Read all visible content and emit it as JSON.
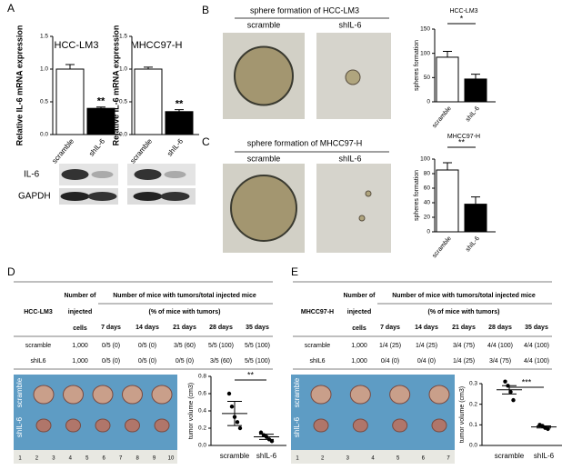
{
  "panel_labels": [
    "A",
    "B",
    "C",
    "D",
    "E"
  ],
  "chart_data": [
    {
      "type": "bar",
      "title": "HCC-LM3",
      "y_label": "Relative IL-6 mRNA  expression",
      "categories": [
        "scramble",
        "shIL-6"
      ],
      "values": [
        1.0,
        0.4
      ],
      "errors": [
        0.07,
        0.02
      ],
      "colors": [
        "#ffffff",
        "#000000"
      ],
      "ylim": [
        0,
        1.5
      ],
      "yticks": [
        {
          "value": 0,
          "label": "0.0"
        },
        0.5,
        {
          "value": 1,
          "label": "1.0"
        },
        1.5
      ],
      "annotation": "**"
    },
    {
      "type": "bar",
      "title": "MHCC97-H",
      "y_label": "Relative IL-6 mRNA  expression",
      "categories": [
        "scramble",
        "shIL-6"
      ],
      "values": [
        1.0,
        0.35
      ],
      "errors": [
        0.03,
        0.03
      ],
      "colors": [
        "#ffffff",
        "#000000"
      ],
      "ylim": [
        0,
        1.5
      ],
      "yticks": [
        {
          "value": 0,
          "label": "0.0"
        },
        0.5,
        {
          "value": 1,
          "label": "1.0"
        },
        1.5
      ],
      "annotation": "**"
    },
    {
      "type": "bar",
      "title": "HCC-LM3",
      "y_label": "spheres formation",
      "categories": [
        "scramble",
        "shIL-6"
      ],
      "values": [
        92,
        47
      ],
      "errors": [
        12,
        10
      ],
      "colors": [
        "#ffffff",
        "#000000"
      ],
      "ylim": [
        0,
        150
      ],
      "yticks": [
        0,
        50,
        100,
        150
      ],
      "annotation": "*"
    },
    {
      "type": "bar",
      "title": "MHCC97-H",
      "y_label": "spheres formation",
      "categories": [
        "scramble",
        "shIL-6"
      ],
      "values": [
        85,
        38
      ],
      "errors": [
        10,
        10
      ],
      "colors": [
        "#ffffff",
        "#000000"
      ],
      "ylim": [
        0,
        100
      ],
      "yticks": [
        0,
        20,
        40,
        60,
        80,
        100
      ],
      "annotation": "**"
    },
    {
      "type": "dot",
      "y_label": "tumor volume (cm3)",
      "categories": [
        "scramble",
        "shIL-6"
      ],
      "points": [
        [
          0.6,
          0.45,
          0.33,
          0.27,
          0.2
        ],
        [
          0.15,
          0.12,
          0.1,
          0.07,
          0.05
        ]
      ],
      "means": [
        0.37,
        0.1
      ],
      "errors": [
        0.14,
        0.03
      ],
      "color": "#000000",
      "ylim": [
        0,
        0.8
      ],
      "yticks": [
        {
          "value": 0,
          "label": "0.0"
        },
        0.2,
        0.4,
        0.6,
        0.8
      ],
      "annotation": "**"
    },
    {
      "type": "dot",
      "y_label": "tumor volume (cm3)",
      "categories": [
        "scramble",
        "shIL-6"
      ],
      "points": [
        [
          0.31,
          0.29,
          0.26,
          0.22
        ],
        [
          0.1,
          0.095,
          0.085,
          0.08
        ]
      ],
      "means": [
        0.27,
        0.09
      ],
      "errors": [
        0.02,
        0.005
      ],
      "color": "#000000",
      "ylim": [
        0,
        0.3
      ],
      "yticks": [
        {
          "value": 0,
          "label": "0.0"
        },
        0.1,
        0.2,
        0.3
      ],
      "annotation": "***"
    }
  ],
  "blot": {
    "labels": [
      "IL-6",
      "GAPDH"
    ]
  },
  "spheres": [
    {
      "title": "sphere formation of HCC-LM3",
      "columns": [
        "scramble",
        "shIL-6"
      ]
    },
    {
      "title": "sphere formation of MHCC97-H",
      "columns": [
        "scramble",
        "shIL-6"
      ]
    }
  ],
  "tables": [
    {
      "corner": "HCC-LM3",
      "cells_header": [
        "Number of",
        "injected",
        "cells"
      ],
      "group_header": "Number of mice with tumors/total injected mice",
      "group_subheader": "(% of mice with tumors)",
      "days": [
        "7 days",
        "14 days",
        "21 days",
        "28 days",
        "35 days"
      ],
      "rows": [
        [
          "scramble",
          "1,000",
          "0/5 (0)",
          "0/5 (0)",
          "3/5 (60)",
          "5/5 (100)",
          "5/5 (100)"
        ],
        [
          "shIL6",
          "1,000",
          "0/5 (0)",
          "0/5 (0)",
          "0/5 (0)",
          "3/5 (60)",
          "5/5 (100)"
        ]
      ]
    },
    {
      "corner": "MHCC97-H",
      "cells_header": [
        "Number of",
        "injected",
        "cells"
      ],
      "group_header": "Number of mice with tumors/total injected mice",
      "group_subheader": "(% of mice with tumors)",
      "days": [
        "7 days",
        "14 days",
        "21 days",
        "28 days",
        "35 days"
      ],
      "rows": [
        [
          "scramble",
          "1,000",
          "1/4 (25)",
          "1/4 (25)",
          "3/4 (75)",
          "4/4 (100)",
          "4/4 (100)"
        ],
        [
          "shIL6",
          "1,000",
          "0/4 (0)",
          "0/4 (0)",
          "1/4 (25)",
          "3/4 (75)",
          "4/4 (100)"
        ]
      ]
    }
  ],
  "photos": [
    {
      "row_labels": [
        "scramble",
        "shIL-6"
      ],
      "ruler": [
        1,
        2,
        3,
        4,
        5,
        6,
        7,
        8,
        9,
        10
      ]
    },
    {
      "row_labels": [
        "scramble",
        "shIL-6"
      ],
      "ruler": [
        1,
        2,
        3,
        4,
        5,
        6,
        7
      ]
    }
  ]
}
